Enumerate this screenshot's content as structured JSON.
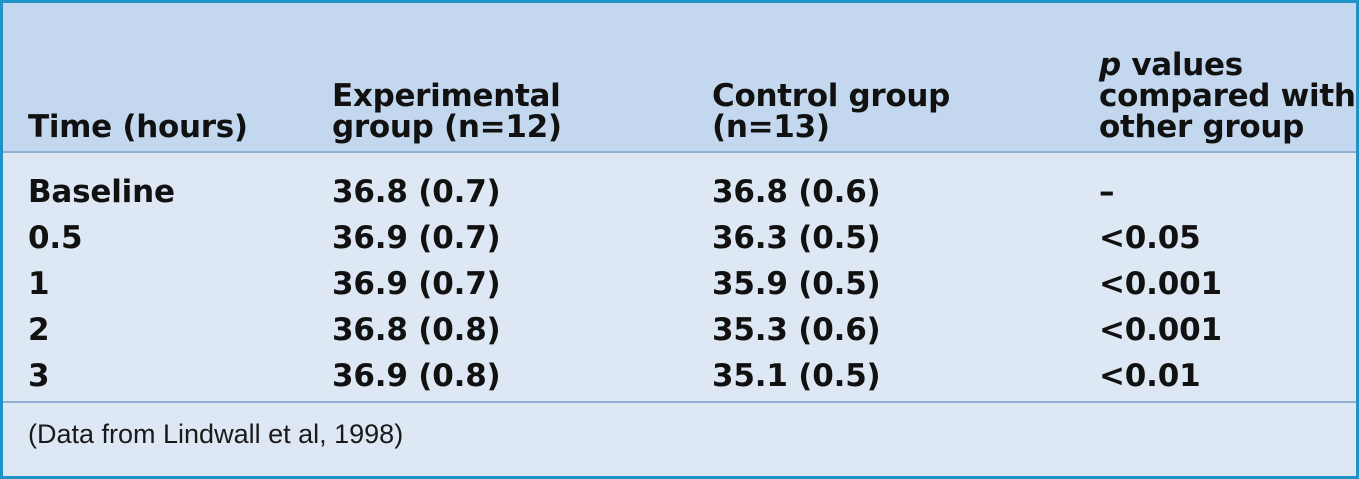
{
  "table": {
    "headers": {
      "time": "Time (hours)",
      "experimental": [
        "Experimental",
        "group (n=12)"
      ],
      "control": [
        "Control group",
        "(n=13)"
      ],
      "pvalues": {
        "italic": "p",
        "line1_rest": " values",
        "line2": "compared with",
        "line3": "other group"
      }
    },
    "rows": [
      {
        "time": "Baseline",
        "experimental": "36.8 (0.7)",
        "control": "36.8 (0.6)",
        "p": "–"
      },
      {
        "time": "0.5",
        "experimental": "36.9 (0.7)",
        "control": "36.3 (0.5)",
        "p": "<0.05"
      },
      {
        "time": "1",
        "experimental": "36.9 (0.7)",
        "control": "35.9 (0.5)",
        "p": "<0.001"
      },
      {
        "time": "2",
        "experimental": "36.8 (0.8)",
        "control": "35.3 (0.6)",
        "p": "<0.001"
      },
      {
        "time": "3",
        "experimental": "36.9 (0.8)",
        "control": "35.1 (0.5)",
        "p": "<0.01"
      }
    ],
    "footnote": "(Data from Lindwall et al, 1998)"
  },
  "colors": {
    "border": "#1f93c8",
    "header_bg": "#c3d8ee",
    "body_bg": "#dde8f4"
  }
}
